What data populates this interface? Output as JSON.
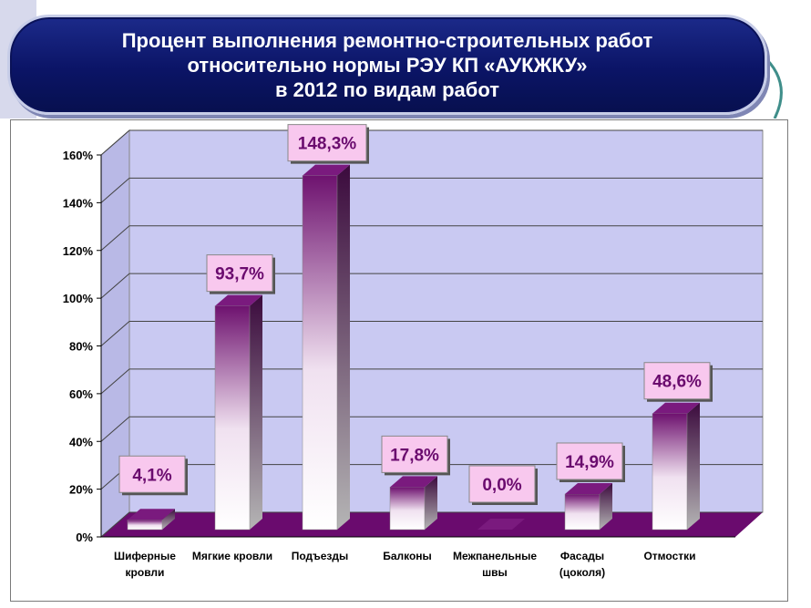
{
  "title": {
    "line1": "Процент выполнения ремонтно-строительных работ",
    "line2": "относительно нормы РЭУ КП «АУКЖКУ»",
    "line3": "в 2012 по видам работ"
  },
  "colors": {
    "banner": "#0b1466",
    "wall": "#c9c9f2",
    "floor": "#6a0b6e",
    "bar_top": "#7a1a7e",
    "label_bg": "#f8c8ee"
  },
  "chart_data": {
    "type": "bar",
    "title": "Процент выполнения ремонтно-строительных работ относительно нормы РЭУ КП «АУКЖКУ» в 2012 по видам работ",
    "xlabel": "",
    "ylabel": "",
    "ylim": [
      0,
      160
    ],
    "yticks": [
      "0%",
      "20%",
      "40%",
      "60%",
      "80%",
      "100%",
      "120%",
      "140%",
      "160%"
    ],
    "categories": [
      [
        "Шиферные",
        "кровли"
      ],
      [
        "Мягкие кровли"
      ],
      [
        "Подъезды"
      ],
      [
        "Балконы"
      ],
      [
        "Межпанельные",
        "швы"
      ],
      [
        "Фасады",
        "(цоколя)"
      ],
      [
        "Отмостки"
      ]
    ],
    "values": [
      4.1,
      93.7,
      148.3,
      17.8,
      0.0,
      14.9,
      48.6
    ],
    "data_labels": [
      "4,1%",
      "93,7%",
      "148,3%",
      "17,8%",
      "0,0%",
      "14,9%",
      "48,6%"
    ]
  }
}
